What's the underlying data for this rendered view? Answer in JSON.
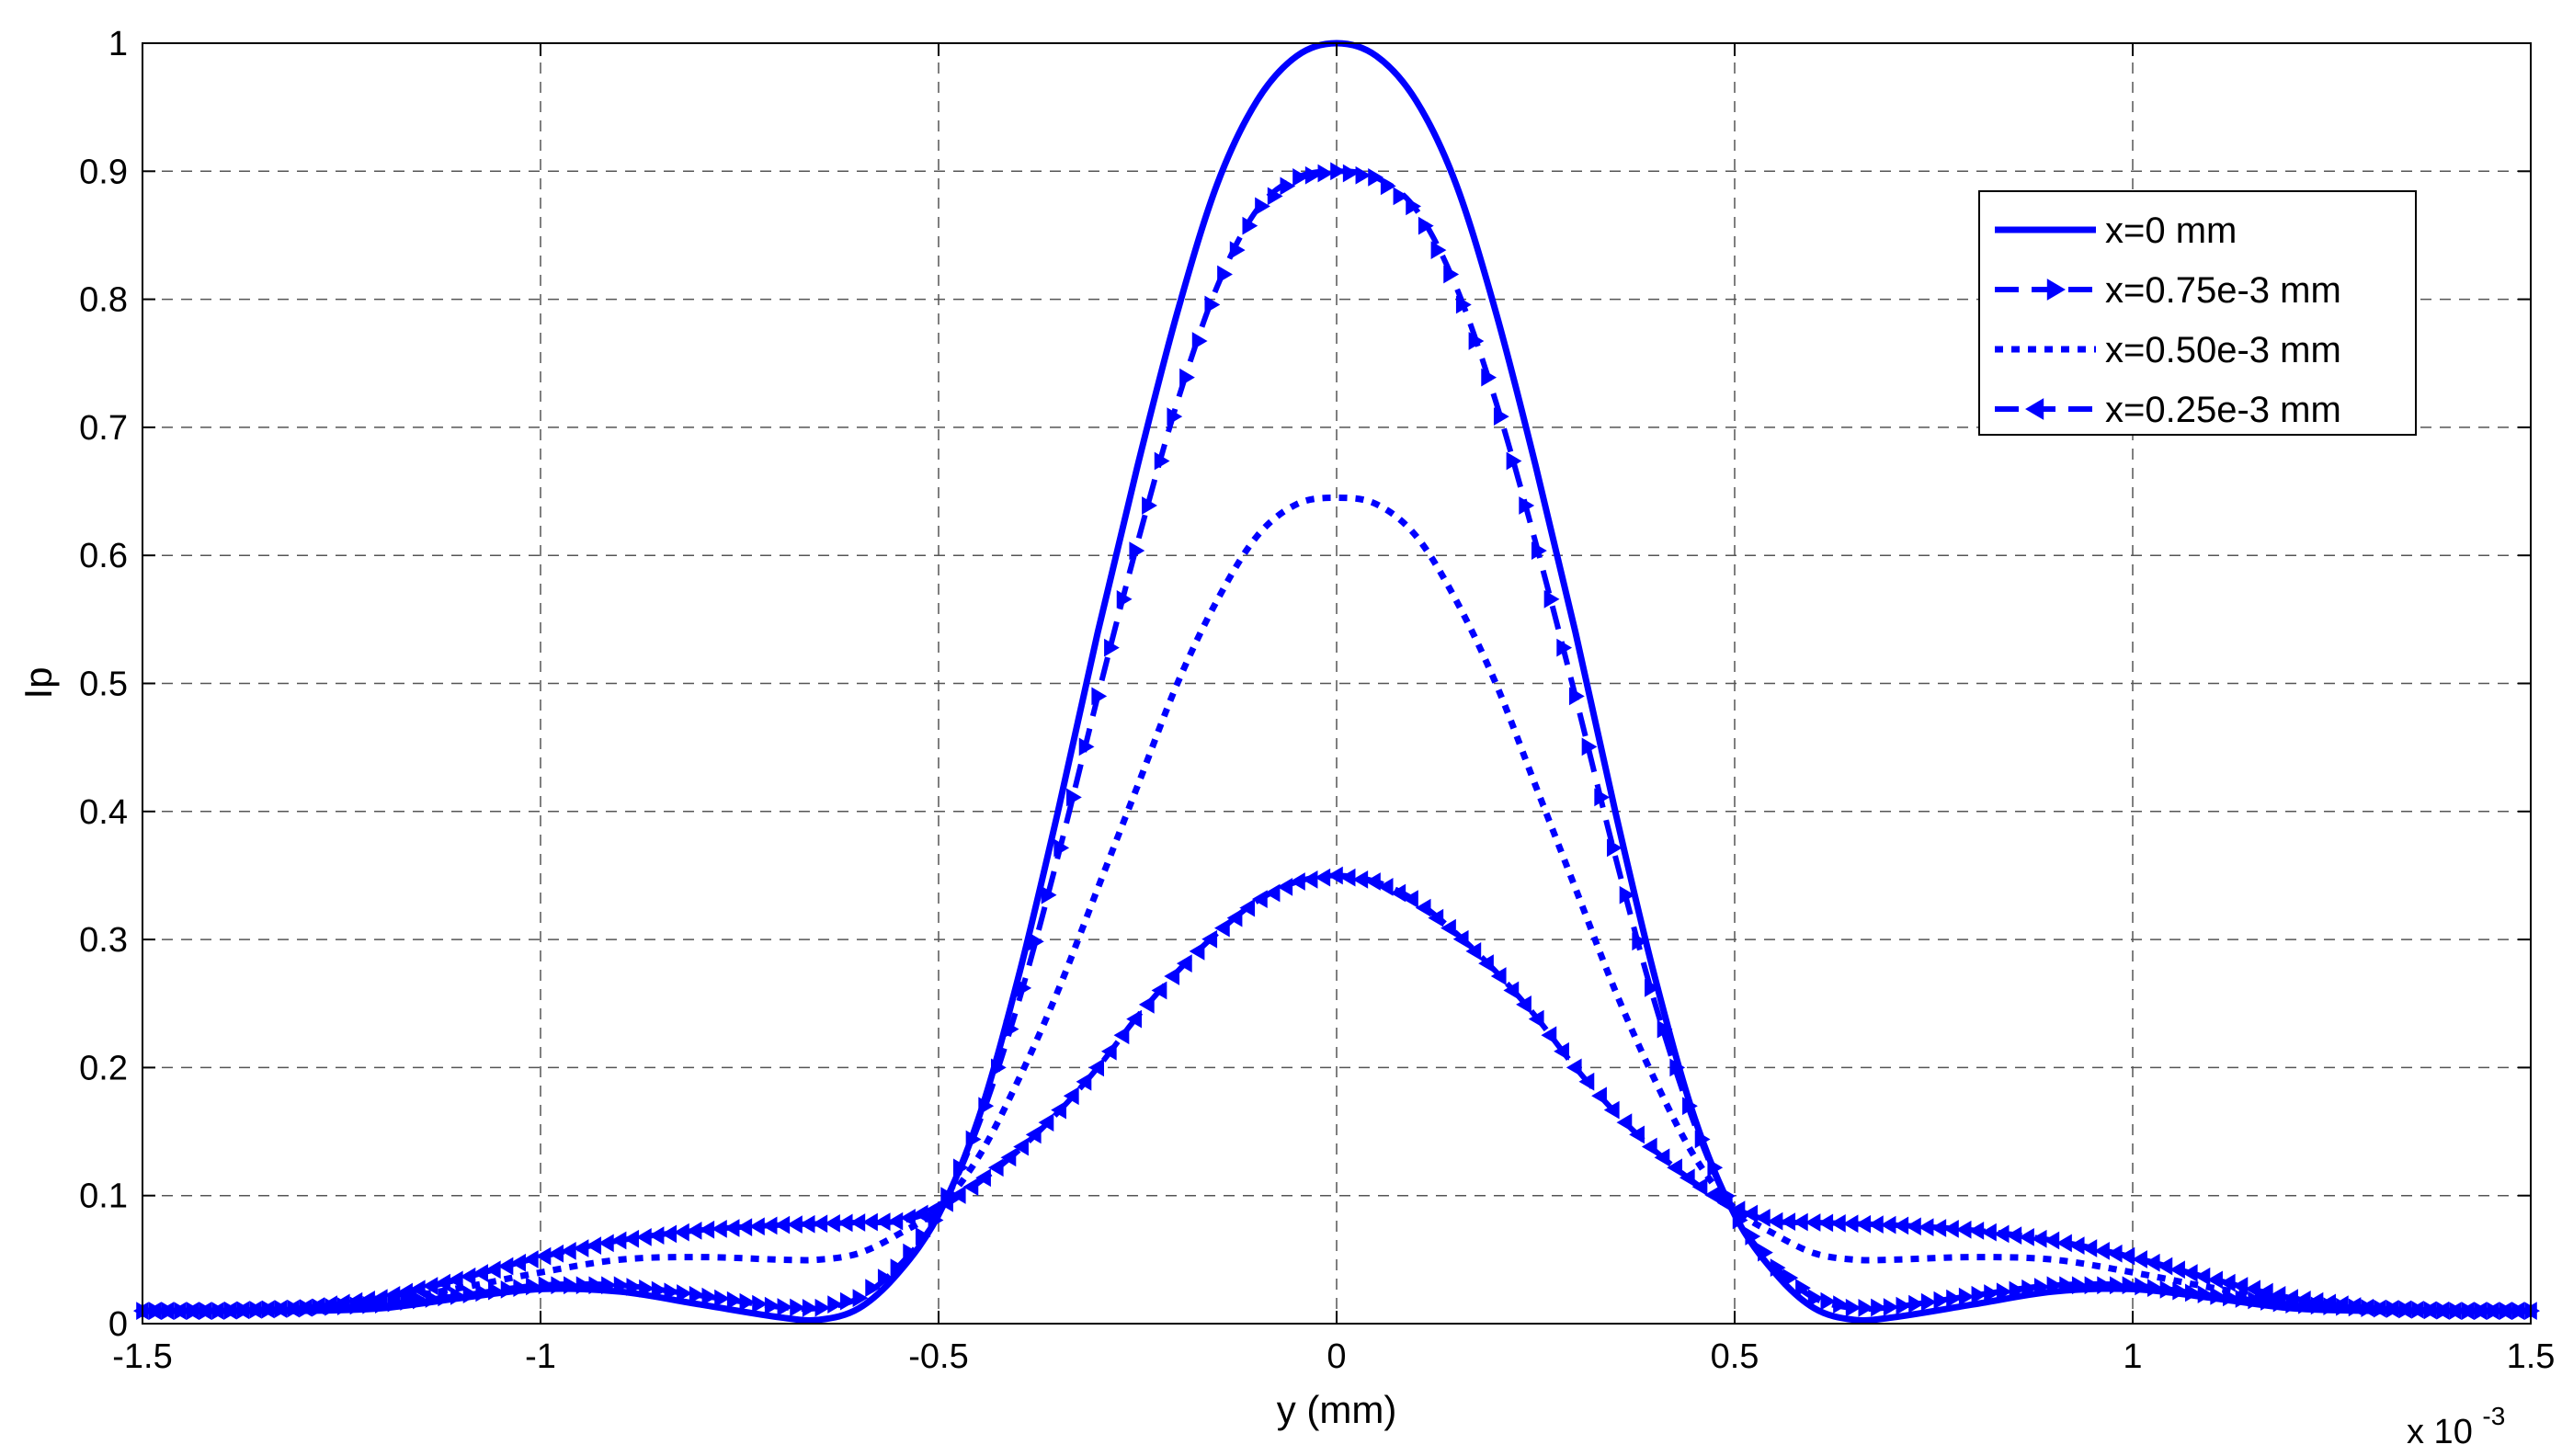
{
  "chart_data": {
    "type": "line",
    "xlabel": "y (mm)",
    "ylabel": "Ip",
    "x_scale_label": "x 10",
    "x_scale_exponent": "-3",
    "xlim": [
      -1.5,
      1.5
    ],
    "ylim": [
      0,
      1
    ],
    "x_ticks": [
      -1.5,
      -1,
      -0.5,
      0,
      0.5,
      1,
      1.5
    ],
    "x_tick_labels": [
      "-1.5",
      "-1",
      "-0.5",
      "0",
      "0.5",
      "1",
      "1.5"
    ],
    "y_ticks": [
      0,
      0.1,
      0.2,
      0.3,
      0.4,
      0.5,
      0.6,
      0.7,
      0.8,
      0.9,
      1
    ],
    "y_tick_labels": [
      "0",
      "0.1",
      "0.2",
      "0.3",
      "0.4",
      "0.5",
      "0.6",
      "0.7",
      "0.8",
      "0.9",
      "1"
    ],
    "grid": true,
    "legend_position": "top-right",
    "line_color": "#0000FF",
    "series": [
      {
        "name": "x=0 mm",
        "style": "solid",
        "x": [
          -1.5,
          -1.4,
          -1.3,
          -1.2,
          -1.1,
          -1.0,
          -0.9,
          -0.8,
          -0.7,
          -0.65,
          -0.6,
          -0.55,
          -0.5,
          -0.45,
          -0.4,
          -0.35,
          -0.3,
          -0.25,
          -0.2,
          -0.15,
          -0.1,
          -0.05,
          0,
          0.05,
          0.1,
          0.15,
          0.2,
          0.25,
          0.3,
          0.35,
          0.4,
          0.45,
          0.5,
          0.55,
          0.6,
          0.65,
          0.7,
          0.8,
          0.9,
          1.0,
          1.1,
          1.2,
          1.3,
          1.4,
          1.5
        ],
        "y": [
          0.01,
          0.01,
          0.01,
          0.012,
          0.02,
          0.027,
          0.025,
          0.015,
          0.005,
          0.003,
          0.012,
          0.04,
          0.085,
          0.16,
          0.27,
          0.4,
          0.54,
          0.67,
          0.79,
          0.89,
          0.955,
          0.99,
          1.0,
          0.99,
          0.955,
          0.89,
          0.79,
          0.67,
          0.54,
          0.4,
          0.27,
          0.16,
          0.085,
          0.04,
          0.012,
          0.003,
          0.005,
          0.015,
          0.025,
          0.027,
          0.02,
          0.012,
          0.01,
          0.01,
          0.01
        ]
      },
      {
        "name": "x=0.75e-3 mm",
        "style": "dash-triangle-right",
        "x": [
          -1.5,
          -1.4,
          -1.3,
          -1.2,
          -1.1,
          -1.0,
          -0.9,
          -0.8,
          -0.7,
          -0.65,
          -0.6,
          -0.55,
          -0.5,
          -0.45,
          -0.4,
          -0.35,
          -0.3,
          -0.25,
          -0.2,
          -0.15,
          -0.1,
          -0.05,
          0,
          0.05,
          0.1,
          0.15,
          0.2,
          0.25,
          0.3,
          0.35,
          0.4,
          0.45,
          0.5,
          0.55,
          0.6,
          0.65,
          0.7,
          0.8,
          0.9,
          1.0,
          1.1,
          1.2,
          1.3,
          1.4,
          1.5
        ],
        "y": [
          0.01,
          0.01,
          0.012,
          0.015,
          0.022,
          0.03,
          0.03,
          0.022,
          0.013,
          0.012,
          0.02,
          0.045,
          0.085,
          0.155,
          0.25,
          0.365,
          0.49,
          0.61,
          0.72,
          0.81,
          0.87,
          0.895,
          0.9,
          0.895,
          0.87,
          0.81,
          0.72,
          0.61,
          0.49,
          0.365,
          0.25,
          0.155,
          0.085,
          0.045,
          0.02,
          0.012,
          0.013,
          0.022,
          0.03,
          0.03,
          0.022,
          0.015,
          0.012,
          0.01,
          0.01
        ]
      },
      {
        "name": "x=0.50e-3 mm",
        "style": "dotted",
        "x": [
          -1.5,
          -1.4,
          -1.3,
          -1.2,
          -1.1,
          -1.0,
          -0.9,
          -0.8,
          -0.7,
          -0.65,
          -0.6,
          -0.55,
          -0.5,
          -0.45,
          -0.4,
          -0.35,
          -0.3,
          -0.25,
          -0.2,
          -0.15,
          -0.1,
          -0.05,
          0,
          0.05,
          0.1,
          0.15,
          0.2,
          0.25,
          0.3,
          0.35,
          0.4,
          0.45,
          0.5,
          0.55,
          0.6,
          0.65,
          0.7,
          0.8,
          0.9,
          1.0,
          1.1,
          1.2,
          1.3,
          1.4,
          1.5
        ],
        "y": [
          0.01,
          0.01,
          0.012,
          0.018,
          0.028,
          0.04,
          0.05,
          0.052,
          0.05,
          0.05,
          0.055,
          0.07,
          0.09,
          0.13,
          0.19,
          0.26,
          0.34,
          0.42,
          0.5,
          0.565,
          0.615,
          0.64,
          0.645,
          0.64,
          0.615,
          0.565,
          0.5,
          0.42,
          0.34,
          0.26,
          0.19,
          0.13,
          0.09,
          0.07,
          0.055,
          0.05,
          0.05,
          0.052,
          0.05,
          0.04,
          0.028,
          0.018,
          0.012,
          0.01,
          0.01
        ]
      },
      {
        "name": "x=0.25e-3 mm",
        "style": "dash-triangle-left",
        "x": [
          -1.5,
          -1.4,
          -1.3,
          -1.2,
          -1.1,
          -1.0,
          -0.9,
          -0.8,
          -0.7,
          -0.65,
          -0.6,
          -0.55,
          -0.5,
          -0.45,
          -0.4,
          -0.35,
          -0.3,
          -0.25,
          -0.2,
          -0.15,
          -0.1,
          -0.05,
          0,
          0.05,
          0.1,
          0.15,
          0.2,
          0.25,
          0.3,
          0.35,
          0.4,
          0.45,
          0.5,
          0.55,
          0.6,
          0.65,
          0.7,
          0.8,
          0.9,
          1.0,
          1.1,
          1.2,
          1.3,
          1.4,
          1.5
        ],
        "y": [
          0.01,
          0.01,
          0.012,
          0.02,
          0.035,
          0.052,
          0.065,
          0.073,
          0.077,
          0.078,
          0.079,
          0.08,
          0.09,
          0.11,
          0.135,
          0.165,
          0.2,
          0.24,
          0.275,
          0.305,
          0.33,
          0.345,
          0.35,
          0.345,
          0.33,
          0.305,
          0.275,
          0.24,
          0.2,
          0.165,
          0.135,
          0.11,
          0.09,
          0.08,
          0.079,
          0.078,
          0.077,
          0.073,
          0.065,
          0.052,
          0.035,
          0.02,
          0.012,
          0.01,
          0.01
        ]
      }
    ]
  }
}
